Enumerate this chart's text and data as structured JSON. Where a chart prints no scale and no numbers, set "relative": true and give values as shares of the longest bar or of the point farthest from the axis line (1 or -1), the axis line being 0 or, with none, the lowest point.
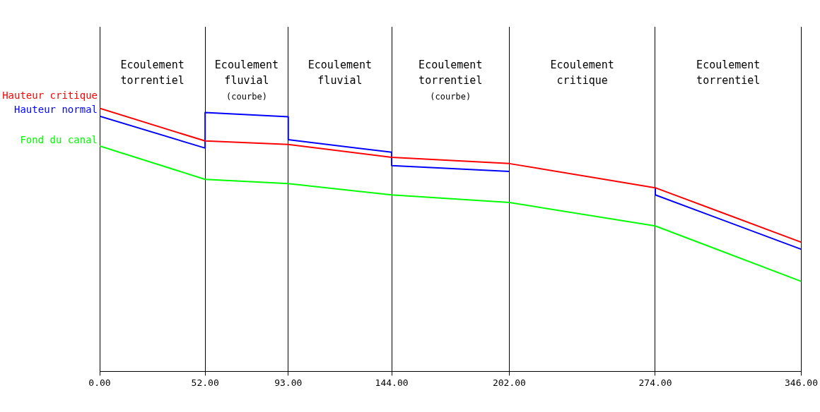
{
  "chart_data": {
    "type": "line",
    "relative": true,
    "grid": "x",
    "legend": false,
    "marker": "none",
    "line_style": "solid",
    "xlim": [
      0,
      346
    ],
    "xticks": [
      {
        "value": 0,
        "label": "0.00"
      },
      {
        "value": 52,
        "label": "52.00"
      },
      {
        "value": 93,
        "label": "93.00"
      },
      {
        "value": 144,
        "label": "144.00"
      },
      {
        "value": 202,
        "label": "202.00"
      },
      {
        "value": 274,
        "label": "274.00"
      },
      {
        "value": 346,
        "label": "346.00"
      }
    ],
    "series": [
      {
        "name": "Hauteur critique",
        "color": "#ff0000",
        "x": [
          0,
          52,
          93,
          144,
          202,
          274,
          346
        ],
        "values": [
          1,
          0.876,
          0.863,
          0.814,
          0.79,
          0.698,
          0.491
        ]
      },
      {
        "name": "Hauteur normal",
        "color": "#0000ff",
        "x": [
          0,
          52,
          52,
          93,
          93,
          144,
          144,
          202,
          238,
          274,
          274,
          346
        ],
        "values": [
          0.97,
          0.849,
          0.984,
          0.968,
          0.881,
          0.833,
          0.782,
          0.76,
          null,
          0.698,
          0.671,
          0.464
        ]
      },
      {
        "name": "Fond du canal",
        "color": "#00ff00",
        "x": [
          0,
          52,
          93,
          144,
          202,
          274,
          346
        ],
        "values": [
          0.857,
          0.73,
          0.714,
          0.671,
          0.642,
          0.553,
          0.342
        ]
      }
    ],
    "annotations": [
      "Ecoulement\ntorrentiel",
      "Ecoulement\nfluvial\n(courbe)",
      "Ecoulement\nfluvial",
      "Ecoulement\ntorrentiel\n(courbe)",
      "Ecoulement\ncritique",
      "Ecoulement\ntorrentiel"
    ]
  }
}
